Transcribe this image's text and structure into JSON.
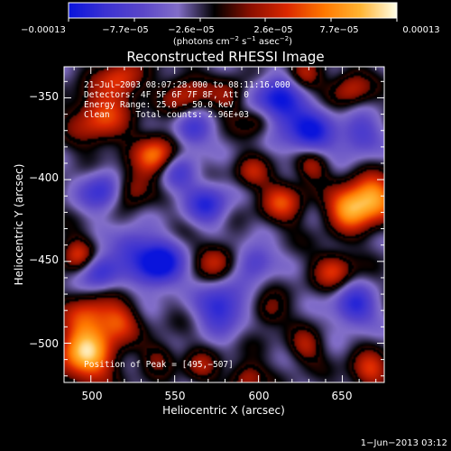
{
  "chart_data": {
    "type": "heatmap",
    "title": "Reconstructed RHESSI Image",
    "xlabel": "Heliocentric X (arcsec)",
    "ylabel": "Heliocentric Y (arcsec)",
    "xlim": [
      484,
      675
    ],
    "ylim": [
      -524,
      -331
    ],
    "x_ticks": [
      {
        "value": 500,
        "label": "500"
      },
      {
        "value": 550,
        "label": "550"
      },
      {
        "value": 600,
        "label": "600"
      },
      {
        "value": 650,
        "label": "650"
      }
    ],
    "y_ticks": [
      {
        "value": -350,
        "label": "−350"
      },
      {
        "value": -400,
        "label": "−400"
      },
      {
        "value": -450,
        "label": "−450"
      },
      {
        "value": -500,
        "label": "−500"
      }
    ],
    "colorbar": {
      "min": -0.00013,
      "max": 0.00013,
      "tick_labels": [
        "−0.00013",
        "−7.7e−05",
        "−2.6e−05",
        "2.6e−05",
        "7.7e−05",
        "0.00013"
      ],
      "units_main": "(photons cm",
      "units_sup1": "−2",
      "units_mid1": " s",
      "units_sup2": "−1",
      "units_mid2": " asec",
      "units_sup3": "−2",
      "units_end": ")"
    },
    "colormap": [
      "#0a14dc",
      "#3c32d2",
      "#5a46c8",
      "#826ec8",
      "#000000",
      "#8c0f00",
      "#dc2800",
      "#ff7800",
      "#ffb432",
      "#ffffe6"
    ],
    "annotations": [
      "21−Jul−2003 08:07:28.000 to 08:11:16.000",
      "Detectors: 4F 5F 6F 7F 8F, Att 0",
      "Energy Range: 25.0 − 50.0 keV",
      "Clean     Total counts: 2.96E+03"
    ],
    "peak_label": "Position of Peak = [495,−507]",
    "peak": [
      495,
      -507
    ],
    "blobs": [
      [
        497,
        -507,
        1.0,
        12
      ],
      [
        499,
        -484,
        0.55,
        10
      ],
      [
        505,
        -362,
        0.6,
        12
      ],
      [
        518,
        -339,
        0.55,
        9
      ],
      [
        540,
        -386,
        0.85,
        9
      ],
      [
        524,
        -405,
        0.45,
        8
      ],
      [
        492,
        -446,
        0.55,
        7
      ],
      [
        517,
        -487,
        0.5,
        8
      ],
      [
        556,
        -348,
        0.45,
        9
      ],
      [
        583,
        -349,
        0.35,
        8
      ],
      [
        601,
        -363,
        0.5,
        8
      ],
      [
        627,
        -337,
        0.45,
        7
      ],
      [
        655,
        -344,
        0.45,
        8
      ],
      [
        596,
        -396,
        0.4,
        7
      ],
      [
        614,
        -414,
        0.55,
        9
      ],
      [
        632,
        -391,
        0.45,
        7
      ],
      [
        653,
        -418,
        0.75,
        9
      ],
      [
        668,
        -412,
        0.9,
        10
      ],
      [
        575,
        -449,
        0.45,
        8
      ],
      [
        645,
        -455,
        0.55,
        8
      ],
      [
        606,
        -481,
        0.35,
        7
      ],
      [
        628,
        -502,
        0.4,
        7
      ],
      [
        666,
        -517,
        0.55,
        8
      ],
      [
        541,
        -508,
        0.3,
        7
      ],
      [
        565,
        -515,
        0.35,
        7
      ],
      [
        593,
        -521,
        0.45,
        7
      ],
      [
        550,
        -395,
        -0.55,
        9
      ],
      [
        611,
        -354,
        -0.9,
        11
      ],
      [
        631,
        -372,
        -0.7,
        10
      ],
      [
        540,
        -452,
        -0.95,
        10
      ],
      [
        507,
        -407,
        -0.6,
        9
      ],
      [
        505,
        -456,
        -0.6,
        8
      ],
      [
        570,
        -415,
        -0.6,
        9
      ],
      [
        578,
        -478,
        -0.7,
        10
      ],
      [
        598,
        -449,
        -0.5,
        8
      ],
      [
        660,
        -373,
        -0.5,
        9
      ],
      [
        657,
        -478,
        -0.65,
        9
      ],
      [
        560,
        -370,
        -0.55,
        8
      ],
      [
        524,
        -441,
        -0.45,
        8
      ]
    ]
  },
  "footer": {
    "date": "1−Jun−2013 03:12"
  }
}
